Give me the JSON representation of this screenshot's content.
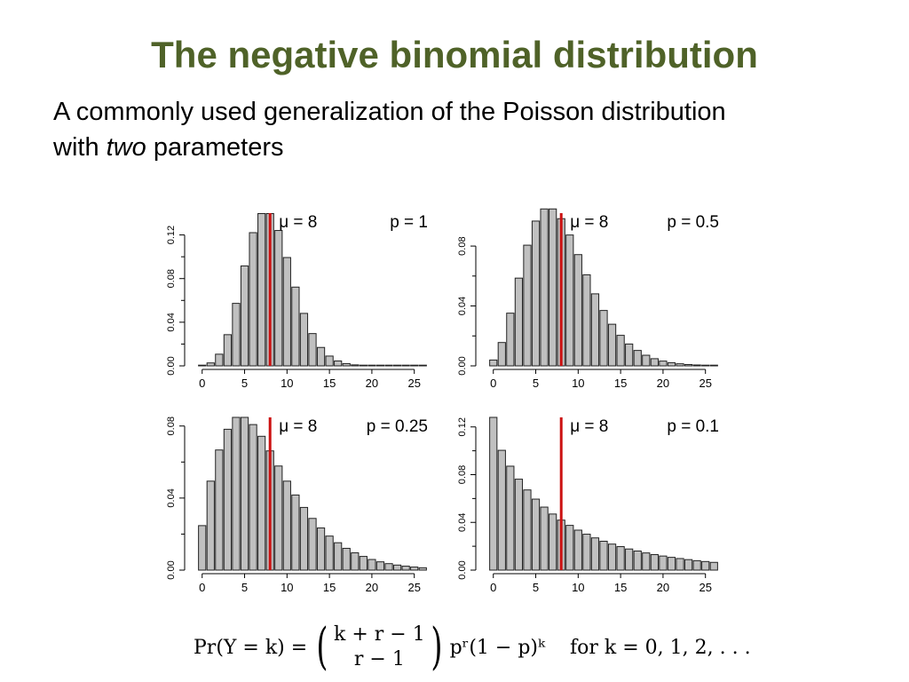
{
  "slide": {
    "title": "The negative binomial distribution",
    "subtitle_a": "A commonly used generalization of the Poisson distribution with ",
    "subtitle_em": "two",
    "subtitle_b": " parameters"
  },
  "formula": {
    "lhs": "Pr(Y = k) =",
    "binom_top": "k + r − 1",
    "binom_bottom": "r − 1",
    "rhs": "pʳ(1 − p)ᵏ",
    "condition": "for k = 0, 1, 2, . . ."
  },
  "style": {
    "bar_fill": "#c0c0c0",
    "bar_stroke": "#222222",
    "mean_line": "#cc1111",
    "title_color": "#4f6228"
  },
  "chart_data": [
    {
      "type": "bar",
      "mu_label": "μ = 8",
      "p_label": "p = 1",
      "mean": 8,
      "x": [
        0,
        1,
        2,
        3,
        4,
        5,
        6,
        7,
        8,
        9,
        10,
        11,
        12,
        13,
        14,
        15,
        16,
        17,
        18,
        19,
        20,
        21,
        22,
        23,
        24,
        25,
        26
      ],
      "values": [
        0.0003,
        0.0027,
        0.0107,
        0.0286,
        0.0573,
        0.0916,
        0.1221,
        0.1396,
        0.1396,
        0.1241,
        0.0993,
        0.0722,
        0.0481,
        0.0296,
        0.0169,
        0.009,
        0.0045,
        0.0021,
        0.0009,
        0.0004,
        0.0002,
        0.0001,
        0,
        0,
        0,
        0,
        0
      ],
      "yticks": [
        0.0,
        0.04,
        0.08,
        0.12
      ],
      "ytick_labels": [
        "0.00",
        "0.04",
        "0.08",
        "0.12"
      ],
      "ylim": [
        0,
        0.14
      ],
      "xticks": [
        0,
        5,
        10,
        15,
        20,
        25
      ],
      "xtick_labels": [
        "0",
        "5",
        "10",
        "15",
        "20",
        "25"
      ]
    },
    {
      "type": "bar",
      "mu_label": "μ = 8",
      "p_label": "p = 0.5",
      "mean": 8,
      "x": [
        0,
        1,
        2,
        3,
        4,
        5,
        6,
        7,
        8,
        9,
        10,
        11,
        12,
        13,
        14,
        15,
        16,
        17,
        18,
        19,
        20,
        21,
        22,
        23,
        24,
        25,
        26
      ],
      "values": [
        0.0039,
        0.0156,
        0.0352,
        0.0586,
        0.0806,
        0.0967,
        0.1048,
        0.1048,
        0.0983,
        0.0874,
        0.0743,
        0.0608,
        0.0481,
        0.037,
        0.0278,
        0.0204,
        0.0146,
        0.0103,
        0.0071,
        0.0048,
        0.0032,
        0.0021,
        0.0014,
        0.0009,
        0.0006,
        0.0004,
        0.0002
      ],
      "yticks": [
        0.0,
        0.04,
        0.08
      ],
      "ytick_labels": [
        "0.00",
        "0.04",
        "0.08"
      ],
      "ylim": [
        0,
        0.102
      ],
      "xticks": [
        0,
        5,
        10,
        15,
        20,
        25
      ],
      "xtick_labels": [
        "0",
        "5",
        "10",
        "15",
        "20",
        "25"
      ]
    },
    {
      "type": "bar",
      "mu_label": "μ = 8",
      "p_label": "p = 0.25",
      "mean": 8,
      "x": [
        0,
        1,
        2,
        3,
        4,
        5,
        6,
        7,
        8,
        9,
        10,
        11,
        12,
        13,
        14,
        15,
        16,
        17,
        18,
        19,
        20,
        21,
        22,
        23,
        24,
        25,
        26
      ],
      "values": [
        0.0247,
        0.0494,
        0.0667,
        0.0782,
        0.0848,
        0.0848,
        0.0808,
        0.0743,
        0.0662,
        0.0578,
        0.0494,
        0.0417,
        0.0348,
        0.0287,
        0.0234,
        0.0189,
        0.0152,
        0.0121,
        0.0096,
        0.0076,
        0.0059,
        0.0046,
        0.0036,
        0.0028,
        0.0022,
        0.0017,
        0.0013
      ],
      "yticks": [
        0.0,
        0.04,
        0.08
      ],
      "ytick_labels": [
        "0.00",
        "0.04",
        "0.08"
      ],
      "ylim": [
        0,
        0.0848
      ],
      "xticks": [
        0,
        5,
        10,
        15,
        20,
        25
      ],
      "xtick_labels": [
        "0",
        "5",
        "10",
        "15",
        "20",
        "25"
      ]
    },
    {
      "type": "bar",
      "mu_label": "μ = 8",
      "p_label": "p = 0.1",
      "mean": 8,
      "x": [
        0,
        1,
        2,
        3,
        4,
        5,
        6,
        7,
        8,
        9,
        10,
        11,
        12,
        13,
        14,
        15,
        16,
        17,
        18,
        19,
        20,
        21,
        22,
        23,
        24,
        25,
        26
      ],
      "values": [
        0.128,
        0.1004,
        0.0871,
        0.0762,
        0.0672,
        0.0595,
        0.0528,
        0.047,
        0.0419,
        0.0375,
        0.0335,
        0.0301,
        0.027,
        0.0242,
        0.0218,
        0.0197,
        0.0177,
        0.016,
        0.0144,
        0.013,
        0.0118,
        0.0107,
        0.0097,
        0.0088,
        0.0079,
        0.0072,
        0.0065
      ],
      "yticks": [
        0.0,
        0.04,
        0.08,
        0.12
      ],
      "ytick_labels": [
        "0.00",
        "0.04",
        "0.08",
        "0.12"
      ],
      "ylim": [
        0,
        0.128
      ],
      "xticks": [
        0,
        5,
        10,
        15,
        20,
        25
      ],
      "xtick_labels": [
        "0",
        "5",
        "10",
        "15",
        "20",
        "25"
      ]
    }
  ]
}
